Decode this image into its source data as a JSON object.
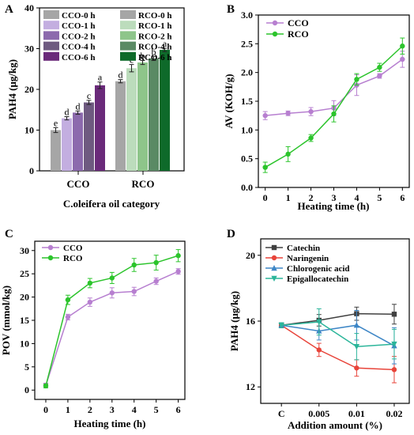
{
  "chart_data": [
    {
      "type": "bar",
      "panel_label": "A",
      "categories": [
        "CCO",
        "RCO"
      ],
      "series": [
        {
          "name": "CCO-0 h",
          "values": [
            10.0,
            null
          ],
          "errors": [
            0.6,
            null
          ],
          "letters": [
            "e",
            null
          ],
          "color": "#a6a6a6"
        },
        {
          "name": "CCO-1 h",
          "values": [
            12.9,
            null
          ],
          "errors": [
            0.4,
            null
          ],
          "letters": [
            "d",
            null
          ],
          "color": "#c3aee0"
        },
        {
          "name": "CCO-2 h",
          "values": [
            14.3,
            null
          ],
          "errors": [
            0.4,
            null
          ],
          "letters": [
            "d",
            null
          ],
          "color": "#8c6aad"
        },
        {
          "name": "CCO-4 h",
          "values": [
            16.8,
            null
          ],
          "errors": [
            0.5,
            null
          ],
          "letters": [
            "c",
            null
          ],
          "color": "#6e5a80"
        },
        {
          "name": "CCO-6 h",
          "values": [
            21.0,
            null
          ],
          "errors": [
            0.8,
            null
          ],
          "letters": [
            "a",
            null
          ],
          "color": "#6a2a7a"
        },
        {
          "name": "RCO-0 h",
          "values": [
            null,
            22.0
          ],
          "errors": [
            null,
            0.4
          ],
          "letters": [
            null,
            "d"
          ],
          "color": "#a6a6a6"
        },
        {
          "name": "RCO-1 h",
          "values": [
            null,
            25.2
          ],
          "errors": [
            null,
            0.9
          ],
          "letters": [
            null,
            "c"
          ],
          "color": "#bcdcbc"
        },
        {
          "name": "RCO-2 h",
          "values": [
            null,
            26.6
          ],
          "errors": [
            null,
            0.5
          ],
          "letters": [
            null,
            "b"
          ],
          "color": "#8ec58a"
        },
        {
          "name": "RCO-4 h",
          "values": [
            null,
            27.6
          ],
          "errors": [
            null,
            0.5
          ],
          "letters": [
            null,
            "b"
          ],
          "color": "#5a8a64"
        },
        {
          "name": "RCO-6 h",
          "values": [
            null,
            29.7
          ],
          "errors": [
            null,
            0.4
          ],
          "letters": [
            null,
            "a"
          ],
          "color": "#0e6a2a"
        }
      ],
      "xlabel": "C.oleifera oil category",
      "ylabel": "PAH4 (μg/kg)",
      "ylim": [
        0,
        40
      ],
      "yticks": [
        "0",
        "10",
        "20",
        "30",
        "40"
      ],
      "legend": "top"
    },
    {
      "type": "line",
      "panel_label": "B",
      "x": [
        0,
        1,
        2,
        3,
        4,
        5,
        6
      ],
      "series": [
        {
          "name": "CCO",
          "values": [
            1.25,
            1.29,
            1.32,
            1.38,
            1.78,
            1.94,
            2.23
          ],
          "errors": [
            0.07,
            0.04,
            0.07,
            0.13,
            0.18,
            0.04,
            0.14
          ],
          "color": "#b77fd0"
        },
        {
          "name": "RCO",
          "values": [
            0.35,
            0.58,
            0.86,
            1.28,
            1.88,
            2.09,
            2.46
          ],
          "errors": [
            0.09,
            0.13,
            0.06,
            0.14,
            0.1,
            0.07,
            0.14
          ],
          "color": "#2cc42c"
        }
      ],
      "xlabel": "Heating time (h)",
      "ylabel": "AV (KOH/g)",
      "xlim": [
        -0.3,
        6.3
      ],
      "ylim": [
        0,
        3
      ],
      "yticks": [
        "0.0",
        "0.5",
        "1.0",
        "1.5",
        "2.0",
        "2.5",
        "3.0"
      ],
      "legend": "top-left"
    },
    {
      "type": "line",
      "panel_label": "C",
      "x": [
        0,
        1,
        2,
        3,
        4,
        5,
        6
      ],
      "series": [
        {
          "name": "CCO",
          "values": [
            1.0,
            15.7,
            18.9,
            20.9,
            21.2,
            23.4,
            25.5
          ],
          "errors": [
            0.5,
            0.6,
            0.9,
            1.1,
            0.9,
            0.7,
            0.6
          ],
          "color": "#b77fd0"
        },
        {
          "name": "RCO",
          "values": [
            0.9,
            19.4,
            23.0,
            24.1,
            26.9,
            27.4,
            28.9
          ],
          "errors": [
            0.4,
            1.0,
            1.0,
            1.2,
            1.4,
            1.6,
            1.3
          ],
          "color": "#2cc42c"
        }
      ],
      "xlabel": "Heating time (h)",
      "ylabel": "POV (mmol/kg)",
      "xlim": [
        -0.5,
        6.3
      ],
      "ylim": [
        -2,
        32
      ],
      "yticks": [
        "0",
        "5",
        "10",
        "15",
        "20",
        "25",
        "30"
      ],
      "legend": "top-left"
    },
    {
      "type": "line",
      "panel_label": "D",
      "categories": [
        "C",
        "0.005",
        "0.01",
        "0.02"
      ],
      "series": [
        {
          "name": "Catechin",
          "values": [
            15.75,
            16.05,
            16.45,
            16.42
          ],
          "errors": [
            0.15,
            0.35,
            0.4,
            0.6
          ],
          "marker": "square",
          "color": "#404040"
        },
        {
          "name": "Naringenin",
          "values": [
            15.75,
            14.25,
            13.15,
            13.05
          ],
          "errors": [
            0.15,
            0.4,
            0.5,
            0.8
          ],
          "marker": "circle",
          "color": "#e8443a"
        },
        {
          "name": "Chlorogenic acid",
          "values": [
            15.75,
            15.4,
            15.75,
            14.5
          ],
          "errors": [
            0.15,
            0.55,
            0.9,
            1.1
          ],
          "marker": "triangle-up",
          "color": "#3d86c6"
        },
        {
          "name": "Epigallocatechin",
          "values": [
            15.75,
            15.95,
            14.45,
            14.6
          ],
          "errors": [
            0.15,
            0.8,
            0.8,
            0.9
          ],
          "marker": "triangle-down",
          "color": "#2bb59a"
        }
      ],
      "xlabel": "Addition amount (%)",
      "ylabel": "PAH4 (μg/kg)",
      "ylim": [
        11,
        21
      ],
      "yticks": [
        "12",
        "16",
        "20"
      ],
      "legend": "top-left"
    }
  ]
}
